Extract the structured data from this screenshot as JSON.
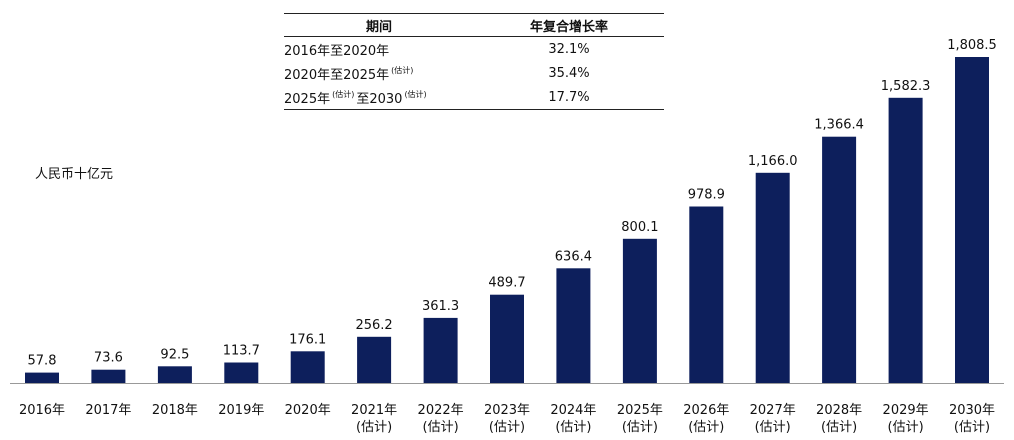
{
  "chart_data": {
    "type": "bar",
    "unit_label": "人民币十亿元",
    "categories": [
      "2016年",
      "2017年",
      "2018年",
      "2019年",
      "2020年",
      "2021年",
      "2022年",
      "2023年",
      "2024年",
      "2025年",
      "2026年",
      "2027年",
      "2028年",
      "2029年",
      "2030年"
    ],
    "estimate_note": "(估计)",
    "estimated_flags": [
      false,
      false,
      false,
      false,
      false,
      true,
      true,
      true,
      true,
      true,
      true,
      true,
      true,
      true,
      true
    ],
    "values": [
      57.8,
      73.6,
      92.5,
      113.7,
      176.1,
      256.2,
      361.3,
      489.7,
      636.4,
      800.1,
      978.9,
      1166.0,
      1366.4,
      1582.3,
      1808.5
    ],
    "value_labels": [
      "57.8",
      "73.6",
      "92.5",
      "113.7",
      "176.1",
      "256.2",
      "361.3",
      "489.7",
      "636.4",
      "800.1",
      "978.9",
      "1,166.0",
      "1,366.4",
      "1,582.3",
      "1,808.5"
    ],
    "bar_color": "#0d1f5c",
    "ylim": [
      0,
      1808.5
    ],
    "grid": false,
    "legend": "none"
  },
  "cagr_table": {
    "header_period": "期间",
    "header_rate": "年复合增长率",
    "rows": [
      {
        "start": "2016年至2020年",
        "start_note": "",
        "end": "",
        "end_note": "",
        "rate": "32.1%"
      },
      {
        "start": "2020年至2025年",
        "start_note": "(估计)",
        "end": "",
        "end_note": "",
        "rate": "35.4%"
      },
      {
        "start": "2025年",
        "start_note": "(估计)",
        "end": "至2030",
        "end_note": "(估计)",
        "rate": "17.7%"
      }
    ]
  }
}
